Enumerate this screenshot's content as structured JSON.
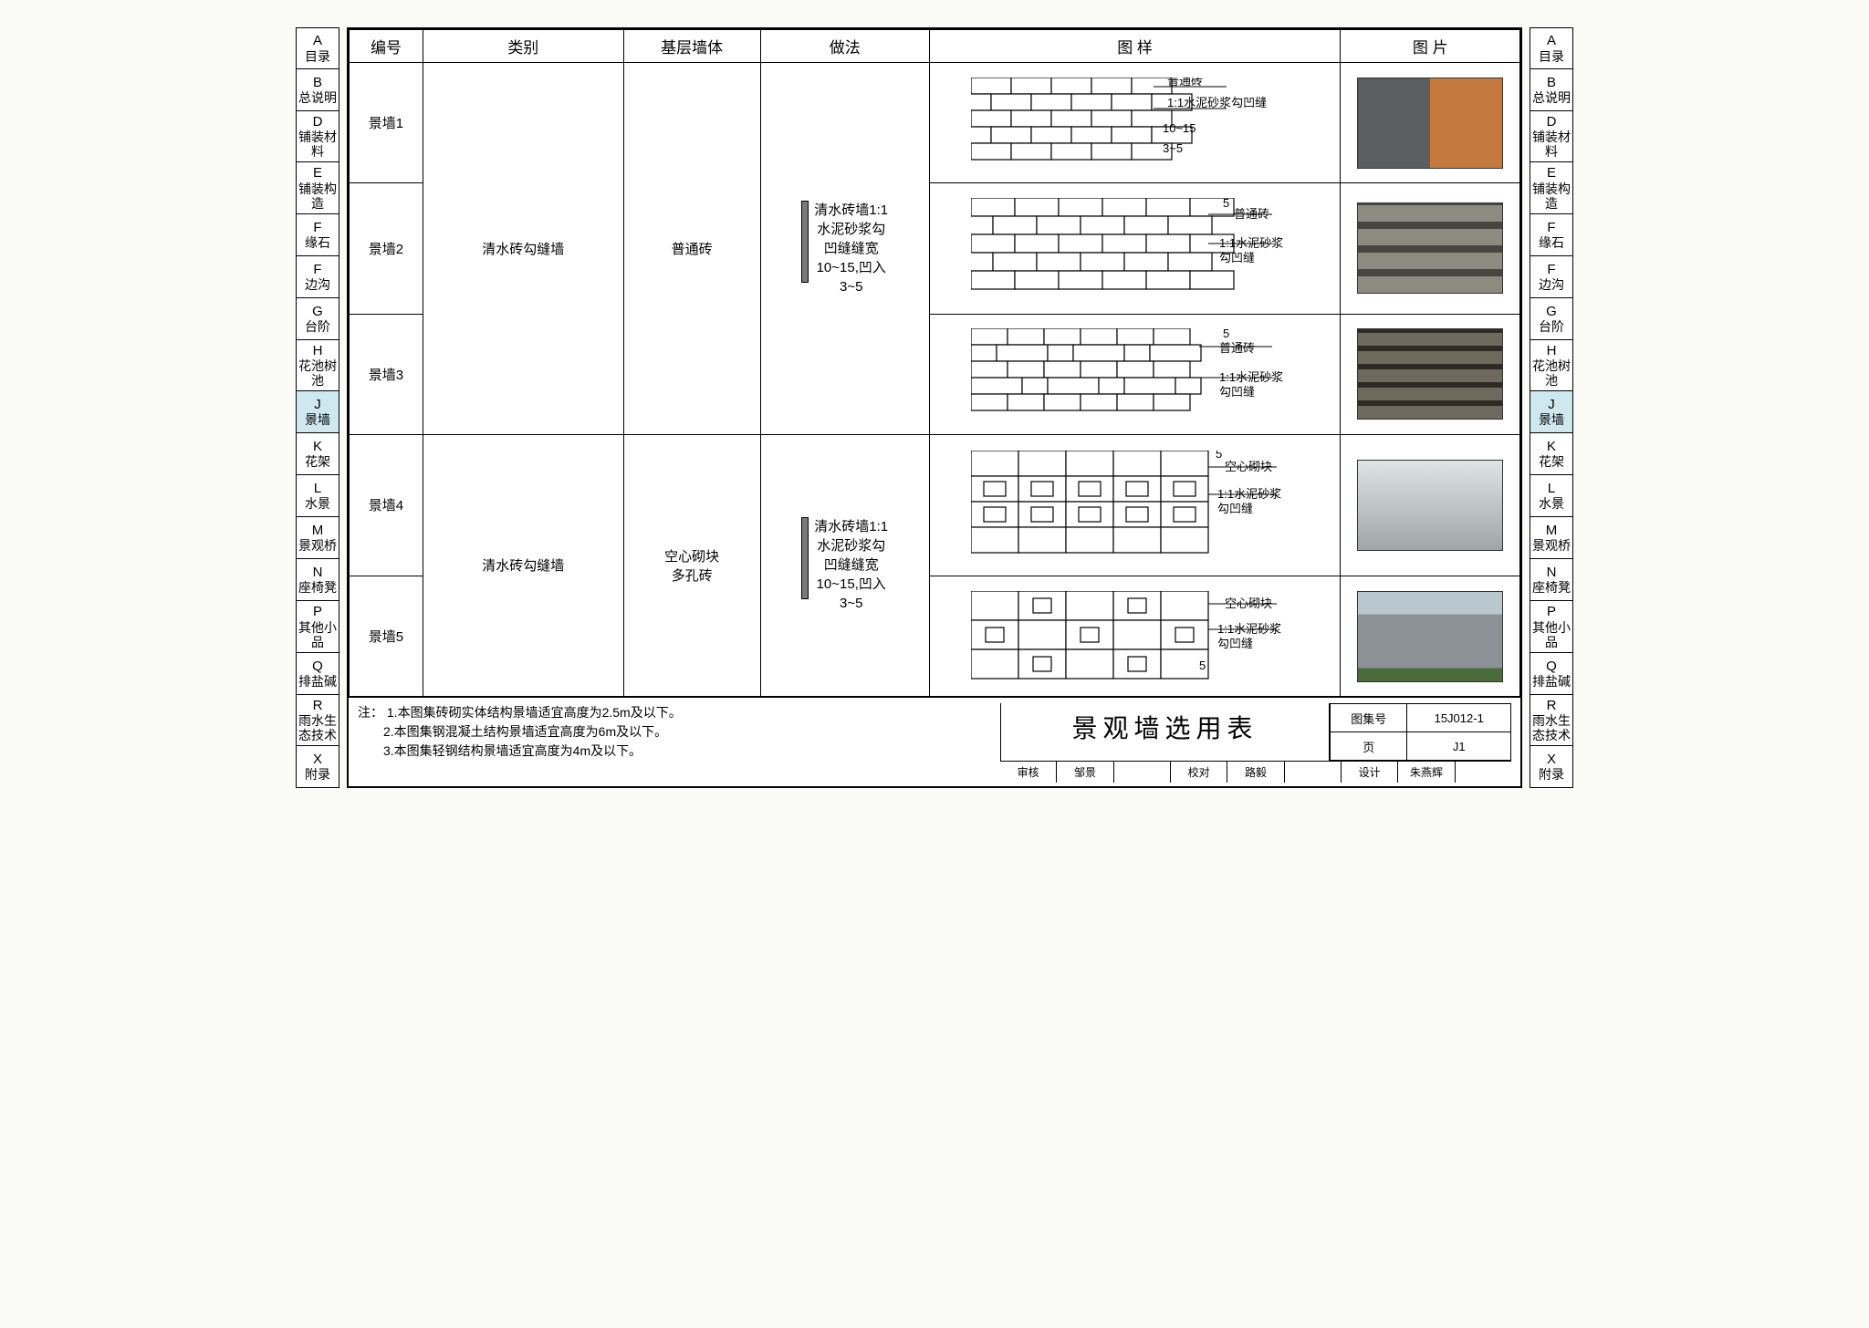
{
  "nav": [
    {
      "letter": "A",
      "label": "目录"
    },
    {
      "letter": "B",
      "label": "总说明"
    },
    {
      "letter": "D",
      "label": "铺装材料"
    },
    {
      "letter": "E",
      "label": "铺装构造"
    },
    {
      "letter": "F",
      "label": "缘石"
    },
    {
      "letter": "F",
      "label": "边沟"
    },
    {
      "letter": "G",
      "label": "台阶"
    },
    {
      "letter": "H",
      "label": "花池树池"
    },
    {
      "letter": "J",
      "label": "景墙",
      "sel": true
    },
    {
      "letter": "K",
      "label": "花架"
    },
    {
      "letter": "L",
      "label": "水景"
    },
    {
      "letter": "M",
      "label": "景观桥"
    },
    {
      "letter": "N",
      "label": "座椅凳"
    },
    {
      "letter": "P",
      "label": "其他小品"
    },
    {
      "letter": "Q",
      "label": "排盐碱"
    },
    {
      "letter": "R",
      "label": "雨水生态技术"
    },
    {
      "letter": "X",
      "label": "附录"
    }
  ],
  "headers": {
    "num": "编号",
    "type": "类别",
    "base": "基层墙体",
    "method": "做法",
    "pattern": "图  样",
    "photo": "图  片"
  },
  "groups": [
    {
      "type": "清水砖勾缝墙",
      "base": "普通砖",
      "method": "清水砖墙1:1\n水泥砂浆勾\n凹缝缝宽\n10~15,凹入\n3~5",
      "rows": [
        {
          "num": "景墙1",
          "pattern": "p1",
          "labels": [
            "普通砖",
            "1:1水泥砂浆勾凹缝"
          ],
          "dims": [
            "10~15",
            "3~5"
          ],
          "photo_css": "background:linear-gradient(90deg,#5a5e60 0 50%,#c47a3f 50% 100%);"
        },
        {
          "num": "景墙2",
          "pattern": "p2",
          "labels": [
            "普通砖",
            "1:1水泥砂浆",
            "勾凹缝"
          ],
          "dim": "5",
          "photo_css": "background:repeating-linear-gradient(0deg,#8d8a80 0 18px,#494640 18px 26px);"
        },
        {
          "num": "景墙3",
          "pattern": "p3",
          "labels": [
            "普通砖",
            "1:1水泥砂浆",
            "勾凹缝"
          ],
          "dim": "5",
          "photo_css": "background:repeating-linear-gradient(0deg,#6e6a5d 0 14px,#2e2b24 14px 20px),repeating-linear-gradient(90deg,rgba(0,0,0,0) 0 24px,rgba(0,0,0,0.5) 24px 28px);"
        }
      ]
    },
    {
      "type": "清水砖勾缝墙",
      "base": "空心砌块\n多孔砖",
      "method": "清水砖墙1:1\n水泥砂浆勾\n凹缝缝宽\n10~15,凹入\n3~5",
      "rows": [
        {
          "num": "景墙4",
          "pattern": "p4",
          "labels": [
            "空心砌块",
            "1:1水泥砂浆",
            "勾凹缝"
          ],
          "dim": "5",
          "photo_css": "background:linear-gradient(#dfe4e6,#9ea6a8);"
        },
        {
          "num": "景墙5",
          "pattern": "p5",
          "labels": [
            "空心砌块",
            "1:1水泥砂浆",
            "勾凹缝"
          ],
          "dim": "5",
          "photo_css": "background:linear-gradient(#b9c8cf 0 25%,#8b9297 25% 85%,#4a6b3a 85% 100%);"
        }
      ]
    }
  ],
  "footer": {
    "note_lead": "注：",
    "notes": [
      "1.本图集砖砌实体结构景墙适宜高度为2.5m及以下。",
      "2.本图集钢混凝土结构景墙适宜高度为6m及以下。",
      "3.本图集轻钢结构景墙适宜高度为4m及以下。"
    ],
    "title": "景观墙选用表",
    "set_label": "图集号",
    "set_value": "15J012-1",
    "page_label": "页",
    "page_value": "J1",
    "sigs": [
      "审核",
      "邹景",
      "",
      "校对",
      "路毅",
      "",
      "设计",
      "朱燕辉",
      ""
    ]
  },
  "style": {
    "border_color": "#000000",
    "bg": "#ffffff",
    "highlight": "#cfe8f0",
    "title_fontsize": 28,
    "header_fontsize": 17,
    "cell_fontsize": 15
  }
}
